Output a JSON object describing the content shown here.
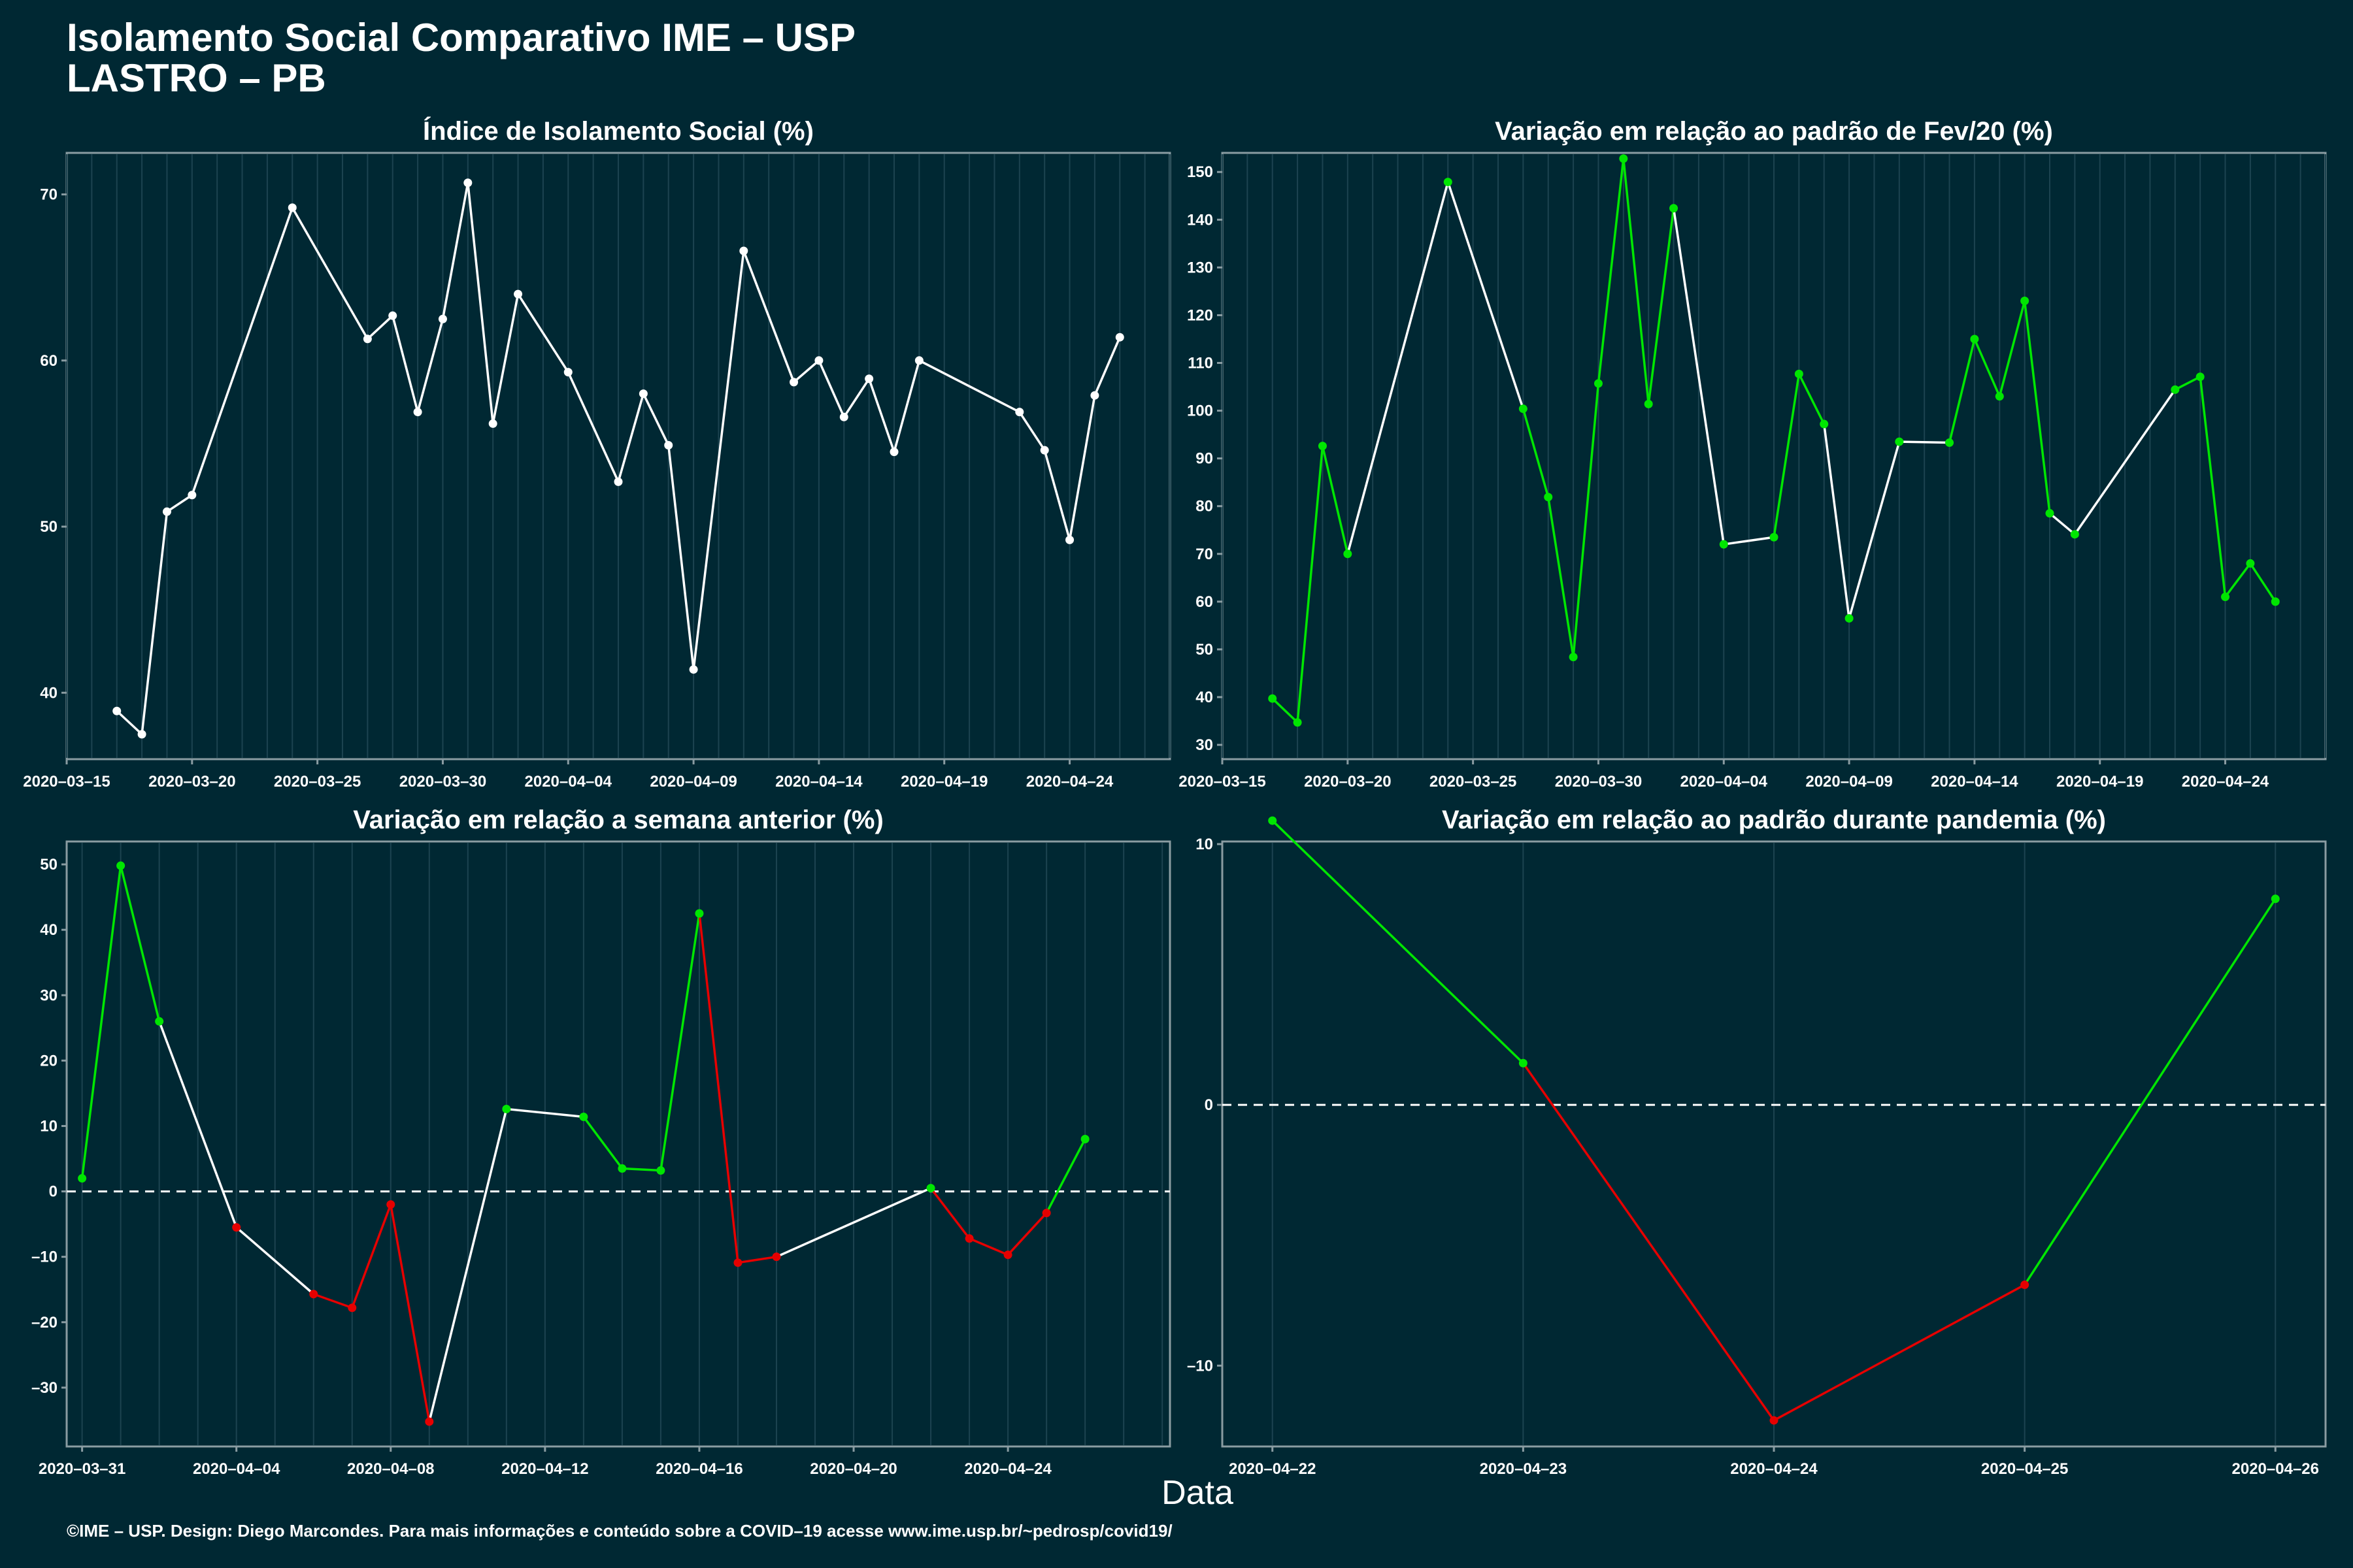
{
  "header": {
    "title_line1": "Isolamento Social Comparativo IME – USP",
    "title_line2": "LASTRO – PB"
  },
  "xlabel": "Data",
  "caption": "©IME – USP. Design: Diego Marcondes. Para mais informações e conteúdo sobre a COVID–19 acesse www.ime.usp.br/~pedrosp/covid19/",
  "colors": {
    "background": "#002833",
    "panel": "#002833",
    "grid": "#1c4350",
    "axis": "#8a9ca2",
    "neutral": "#ffffff",
    "up": "#00e600",
    "down": "#e60000",
    "zero_line": "#ffffff"
  },
  "chart_data": [
    {
      "id": "p1",
      "type": "line",
      "title": "Índice de Isolamento Social (%)",
      "x_type": "date",
      "xlim": [
        "2020-03-15",
        "2020-04-28"
      ],
      "x_ticks": [
        "2020-03-15",
        "2020-03-20",
        "2020-03-25",
        "2020-03-30",
        "2020-04-04",
        "2020-04-09",
        "2020-04-14",
        "2020-04-19",
        "2020-04-24"
      ],
      "ylim": [
        36,
        72.5
      ],
      "y_ticks": [
        40,
        50,
        60,
        70
      ],
      "zero_line": false,
      "color_mode": "neutral",
      "x": [
        "2020-03-17",
        "2020-03-18",
        "2020-03-19",
        "2020-03-20",
        "2020-03-24",
        "2020-03-27",
        "2020-03-28",
        "2020-03-29",
        "2020-03-30",
        "2020-03-31",
        "2020-04-01",
        "2020-04-02",
        "2020-04-04",
        "2020-04-06",
        "2020-04-07",
        "2020-04-08",
        "2020-04-09",
        "2020-04-11",
        "2020-04-13",
        "2020-04-14",
        "2020-04-15",
        "2020-04-16",
        "2020-04-17",
        "2020-04-18",
        "2020-04-22",
        "2020-04-23",
        "2020-04-24",
        "2020-04-25",
        "2020-04-26"
      ],
      "y": [
        38.9,
        37.5,
        50.9,
        51.9,
        69.2,
        61.3,
        62.7,
        56.9,
        62.5,
        70.7,
        56.2,
        64.0,
        59.3,
        52.7,
        58.0,
        54.9,
        41.4,
        66.6,
        58.7,
        60.0,
        56.6,
        58.9,
        54.5,
        60.0,
        56.9,
        54.6,
        49.2,
        57.9,
        61.4
      ]
    },
    {
      "id": "p2",
      "type": "line",
      "title": "Variação em relação ao padrão de Fev/20 (%)",
      "x_type": "date",
      "xlim": [
        "2020-03-15",
        "2020-04-28"
      ],
      "x_ticks": [
        "2020-03-15",
        "2020-03-20",
        "2020-03-25",
        "2020-03-30",
        "2020-04-04",
        "2020-04-09",
        "2020-04-14",
        "2020-04-19",
        "2020-04-24"
      ],
      "ylim": [
        27,
        154
      ],
      "y_ticks": [
        30,
        40,
        50,
        60,
        70,
        80,
        90,
        100,
        110,
        120,
        130,
        140,
        150
      ],
      "zero_line": false,
      "color_mode": "segments",
      "x": [
        "2020-03-17",
        "2020-03-18",
        "2020-03-19",
        "2020-03-20",
        "2020-03-24",
        "2020-03-27",
        "2020-03-28",
        "2020-03-29",
        "2020-03-30",
        "2020-03-31",
        "2020-04-01",
        "2020-04-02",
        "2020-04-04",
        "2020-04-06",
        "2020-04-07",
        "2020-04-08",
        "2020-04-09",
        "2020-04-11",
        "2020-04-13",
        "2020-04-14",
        "2020-04-15",
        "2020-04-16",
        "2020-04-17",
        "2020-04-18",
        "2020-04-22",
        "2020-04-23",
        "2020-04-24",
        "2020-04-25",
        "2020-04-26"
      ],
      "y": [
        39.7,
        34.7,
        92.6,
        70.0,
        147.9,
        100.4,
        81.9,
        48.4,
        105.7,
        152.8,
        101.4,
        142.4,
        72.0,
        73.5,
        107.7,
        97.2,
        56.5,
        93.5,
        93.3,
        115.0,
        103.0,
        123.0,
        78.5,
        74.1,
        104.4,
        107.1,
        61.0,
        68.0,
        60.0
      ],
      "segment_colors": [
        "up",
        "up",
        "up",
        "neutral",
        "neutral",
        "up",
        "up",
        "up",
        "up",
        "up",
        "up",
        "neutral",
        "neutral",
        "up",
        "up",
        "neutral",
        "neutral",
        "neutral",
        "up",
        "up",
        "up",
        "up",
        "neutral",
        "neutral",
        "up",
        "up",
        "up",
        "up"
      ],
      "point_colors": [
        "up",
        "up",
        "up",
        "up",
        "up",
        "up",
        "up",
        "up",
        "up",
        "up",
        "up",
        "up",
        "up",
        "up",
        "up",
        "up",
        "up",
        "up",
        "up",
        "up",
        "up",
        "up",
        "up",
        "up",
        "up",
        "up",
        "up",
        "up",
        "up"
      ]
    },
    {
      "id": "p3",
      "type": "line",
      "title": "Variação em relação a semana anterior (%)",
      "x_type": "date",
      "xlim": [
        "2020-03-30.6",
        "2020-04-28.2"
      ],
      "x_ticks": [
        "2020-03-31",
        "2020-04-04",
        "2020-04-08",
        "2020-04-12",
        "2020-04-16",
        "2020-04-20",
        "2020-04-24"
      ],
      "ylim": [
        -39,
        53.5
      ],
      "y_ticks": [
        -30,
        -20,
        -10,
        0,
        10,
        20,
        30,
        40,
        50
      ],
      "zero_line": true,
      "color_mode": "segments",
      "x": [
        "2020-03-31",
        "2020-04-01",
        "2020-04-02",
        "2020-04-04",
        "2020-04-06",
        "2020-04-07",
        "2020-04-08",
        "2020-04-09",
        "2020-04-11",
        "2020-04-13",
        "2020-04-14",
        "2020-04-15",
        "2020-04-16",
        "2020-04-17",
        "2020-04-18",
        "2020-04-22",
        "2020-04-23",
        "2020-04-24",
        "2020-04-25",
        "2020-04-26"
      ],
      "y": [
        2.0,
        49.8,
        26.0,
        -5.5,
        -15.7,
        -17.8,
        -2.0,
        -35.2,
        12.6,
        11.4,
        3.5,
        3.2,
        42.5,
        -10.9,
        -10.0,
        0.5,
        -7.2,
        -9.7,
        -3.3,
        8.0
      ],
      "segment_colors": [
        "up",
        "up",
        "neutral",
        "neutral",
        "down",
        "down",
        "down",
        "neutral",
        "neutral",
        "up",
        "up",
        "up",
        "down",
        "down",
        "neutral",
        "down",
        "down",
        "down",
        "up"
      ],
      "point_colors": [
        "up",
        "up",
        "up",
        "down",
        "down",
        "down",
        "down",
        "down",
        "up",
        "up",
        "up",
        "up",
        "up",
        "down",
        "down",
        "up",
        "down",
        "down",
        "down",
        "up"
      ]
    },
    {
      "id": "p4",
      "type": "line",
      "title": "Variação em relação ao padrão durante pandemia (%)",
      "x_type": "date",
      "xlim": [
        "2020-04-21.8",
        "2020-04-26.2"
      ],
      "x_ticks": [
        "2020-04-22",
        "2020-04-23",
        "2020-04-24",
        "2020-04-25",
        "2020-04-26"
      ],
      "ylim": [
        -13.1,
        10.1
      ],
      "y_ticks": [
        -10,
        0,
        10
      ],
      "zero_line": true,
      "color_mode": "segments",
      "x": [
        "2020-04-22",
        "2020-04-23",
        "2020-04-24",
        "2020-04-25",
        "2020-04-26"
      ],
      "y": [
        10.9,
        1.6,
        -12.1,
        -6.9,
        7.9
      ],
      "segment_colors": [
        "up",
        "down",
        "down",
        "up"
      ],
      "point_colors": [
        "up",
        "up",
        "down",
        "down",
        "up"
      ]
    }
  ]
}
